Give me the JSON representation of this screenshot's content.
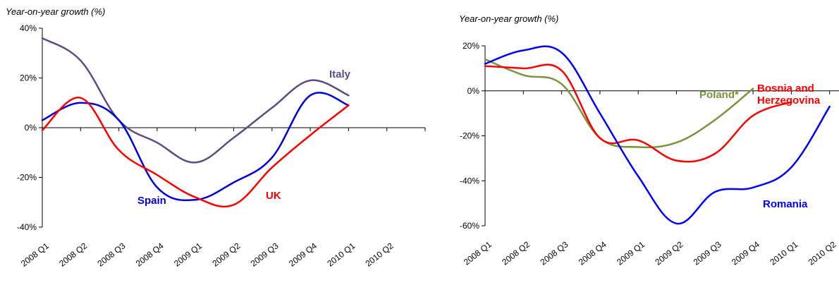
{
  "chart_data": [
    {
      "type": "line",
      "ylabel": "Year-on-year growth (%)",
      "categories": [
        "2008 Q1",
        "2008 Q2",
        "2008 Q3",
        "2008 Q4",
        "2009 Q1",
        "2009 Q2",
        "2009 Q3",
        "2009 Q4",
        "2010 Q1",
        "2010 Q2"
      ],
      "ylim": [
        -40,
        40
      ],
      "yticks": [
        40,
        20,
        0,
        -20,
        -40
      ],
      "ytick_labels": [
        "40%",
        "20%",
        "0%",
        "-20%",
        "-40%"
      ],
      "grid": false,
      "series": [
        {
          "name": "Italy",
          "color": "#5e4b82",
          "values": [
            36,
            27,
            3,
            -6,
            -14,
            -4,
            8,
            19,
            13,
            null
          ]
        },
        {
          "name": "Spain",
          "color": "#0000dd",
          "values": [
            3,
            10,
            3,
            -24,
            -29,
            -22,
            -12,
            13,
            9,
            null
          ]
        },
        {
          "name": "UK",
          "color": "#ff0000",
          "values": [
            -1,
            12,
            -9,
            -19,
            -28,
            -31,
            -16,
            -3,
            9,
            null
          ]
        }
      ]
    },
    {
      "type": "line",
      "ylabel": "Year-on-year growth (%)",
      "categories": [
        "2008 Q1",
        "2008 Q2",
        "2008 Q3",
        "2008 Q4",
        "2009 Q1",
        "2009 Q2",
        "2009 Q3",
        "2009 Q4",
        "2010 Q1",
        "2010 Q2"
      ],
      "ylim": [
        -60,
        20
      ],
      "yticks": [
        20,
        0,
        -20,
        -40,
        -60
      ],
      "ytick_labels": [
        "20%",
        "0%",
        "-20%",
        "-40%",
        "-60%"
      ],
      "grid": false,
      "series": [
        {
          "name": "Poland*",
          "color": "#77933c",
          "values": [
            14,
            7,
            3,
            -21,
            -25,
            -23,
            -13,
            1,
            null,
            null
          ]
        },
        {
          "name": "Bosnia and Herzegovina",
          "label_lines": [
            "Bosnia and",
            "Herzegovina"
          ],
          "color": "#ff0000",
          "values": [
            11,
            10,
            9,
            -21,
            -22,
            -31,
            -28,
            -11,
            -5,
            null
          ]
        },
        {
          "name": "Romania",
          "color": "#0000ff",
          "values": [
            12,
            18,
            17,
            -10,
            -38,
            -59,
            -45,
            -43,
            -34,
            -7
          ]
        }
      ]
    }
  ]
}
